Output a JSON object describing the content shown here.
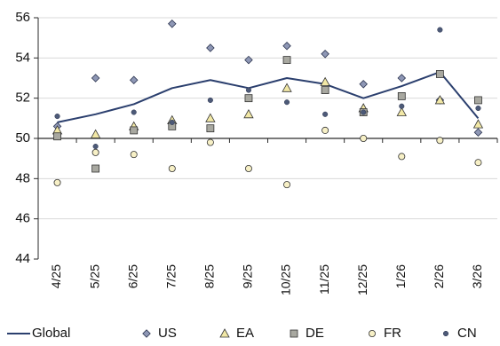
{
  "chart_data": {
    "type": "line",
    "categories": [
      "4/25",
      "5/25",
      "6/25",
      "7/25",
      "8/25",
      "9/25",
      "10/25",
      "11/25",
      "12/25",
      "1/26",
      "2/26",
      "3/26"
    ],
    "ylim": [
      44,
      56
    ],
    "yticks": [
      44,
      46,
      48,
      50,
      52,
      54,
      56
    ],
    "grid": "horizontal",
    "legend_position": "bottom",
    "series": [
      {
        "name": "Global",
        "kind": "line",
        "color": "#2b3f6e",
        "values": [
          50.8,
          51.2,
          51.7,
          52.5,
          52.9,
          52.5,
          53.0,
          52.7,
          52.0,
          52.6,
          53.3,
          51.0
        ]
      },
      {
        "name": "US",
        "kind": "diamond",
        "color": "#8e97b5",
        "values": [
          50.6,
          53.0,
          52.9,
          55.7,
          54.5,
          53.9,
          54.6,
          54.2,
          52.7,
          53.0,
          51.9,
          50.3
        ]
      },
      {
        "name": "EA",
        "kind": "triangle",
        "color": "#f2e8a6",
        "values": [
          50.4,
          50.2,
          50.6,
          50.9,
          51.0,
          51.2,
          52.5,
          52.8,
          51.5,
          51.3,
          51.9,
          50.7
        ]
      },
      {
        "name": "DE",
        "kind": "square",
        "color": "#a8a8a0",
        "values": [
          50.1,
          48.5,
          50.4,
          50.6,
          50.5,
          52.0,
          53.9,
          52.4,
          51.3,
          52.1,
          53.2,
          51.9
        ]
      },
      {
        "name": "FR",
        "kind": "circle-open",
        "color": "#f7f0c6",
        "values": [
          47.8,
          49.3,
          49.2,
          48.5,
          49.8,
          48.5,
          47.7,
          50.4,
          50.0,
          49.1,
          49.9,
          48.8
        ]
      },
      {
        "name": "CN",
        "kind": "dot",
        "color": "#4d5a78",
        "values": [
          51.1,
          49.6,
          51.3,
          50.8,
          51.9,
          52.4,
          51.8,
          51.2,
          51.3,
          51.6,
          55.4,
          51.5
        ]
      }
    ]
  }
}
